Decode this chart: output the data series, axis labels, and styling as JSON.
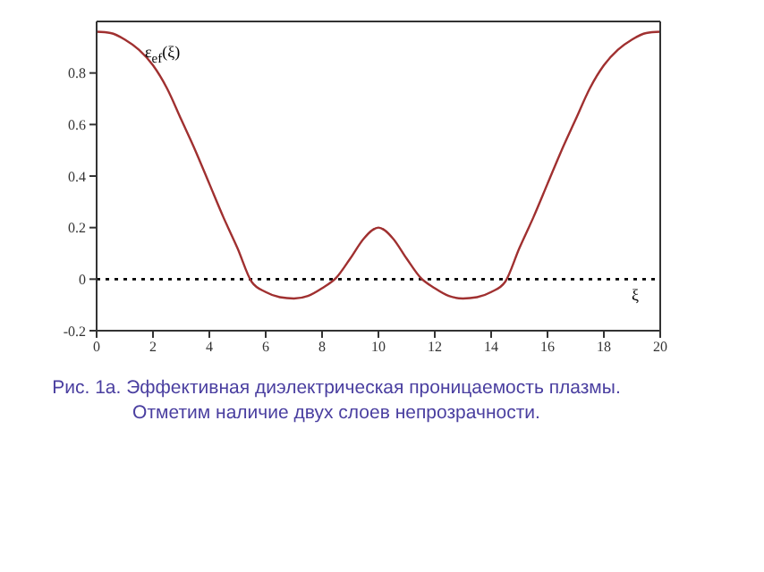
{
  "chart_data": {
    "type": "line",
    "xlabel": "ξ",
    "ylabel": "ε$_{ef}$(ξ)",
    "x": [
      0,
      0.5,
      1,
      1.5,
      2,
      2.5,
      3,
      3.5,
      4,
      4.5,
      5,
      5.5,
      6,
      6.5,
      7,
      7.5,
      8,
      8.5,
      9,
      9.5,
      10,
      10.5,
      11,
      11.5,
      12,
      12.5,
      13,
      13.5,
      14,
      14.5,
      15,
      15.5,
      16,
      16.5,
      17,
      17.5,
      18,
      18.5,
      19,
      19.5,
      20
    ],
    "series": [
      {
        "color": "#a03030",
        "values": [
          0.96,
          0.955,
          0.93,
          0.89,
          0.83,
          0.74,
          0.62,
          0.5,
          0.37,
          0.24,
          0.12,
          -0.01,
          -0.05,
          -0.07,
          -0.075,
          -0.065,
          -0.035,
          0.005,
          0.08,
          0.16,
          0.2,
          0.16,
          0.08,
          0.005,
          -0.035,
          -0.065,
          -0.075,
          -0.07,
          -0.05,
          -0.01,
          0.12,
          0.24,
          0.37,
          0.5,
          0.62,
          0.74,
          0.83,
          0.89,
          0.93,
          0.955,
          0.96
        ]
      }
    ],
    "xlim": [
      0,
      20
    ],
    "xticks": [
      0,
      2,
      4,
      6,
      8,
      10,
      12,
      14,
      16,
      18,
      20
    ],
    "ylim": [
      -0.2,
      1.0
    ],
    "yticks": [
      -0.2,
      0,
      0.2,
      0.4,
      0.6,
      0.8
    ],
    "ref_lines": [
      {
        "axis": "y",
        "value": 0,
        "color": "#000000",
        "line_style": "dotted"
      }
    ],
    "grid": false,
    "legend": false,
    "marker": "none",
    "line_style": "solid",
    "annotations": [
      "Рис. 1а. Эффективная диэлектрическая проницаемость плазмы.",
      "Отметим наличие двух слоев непрозрачности."
    ]
  }
}
